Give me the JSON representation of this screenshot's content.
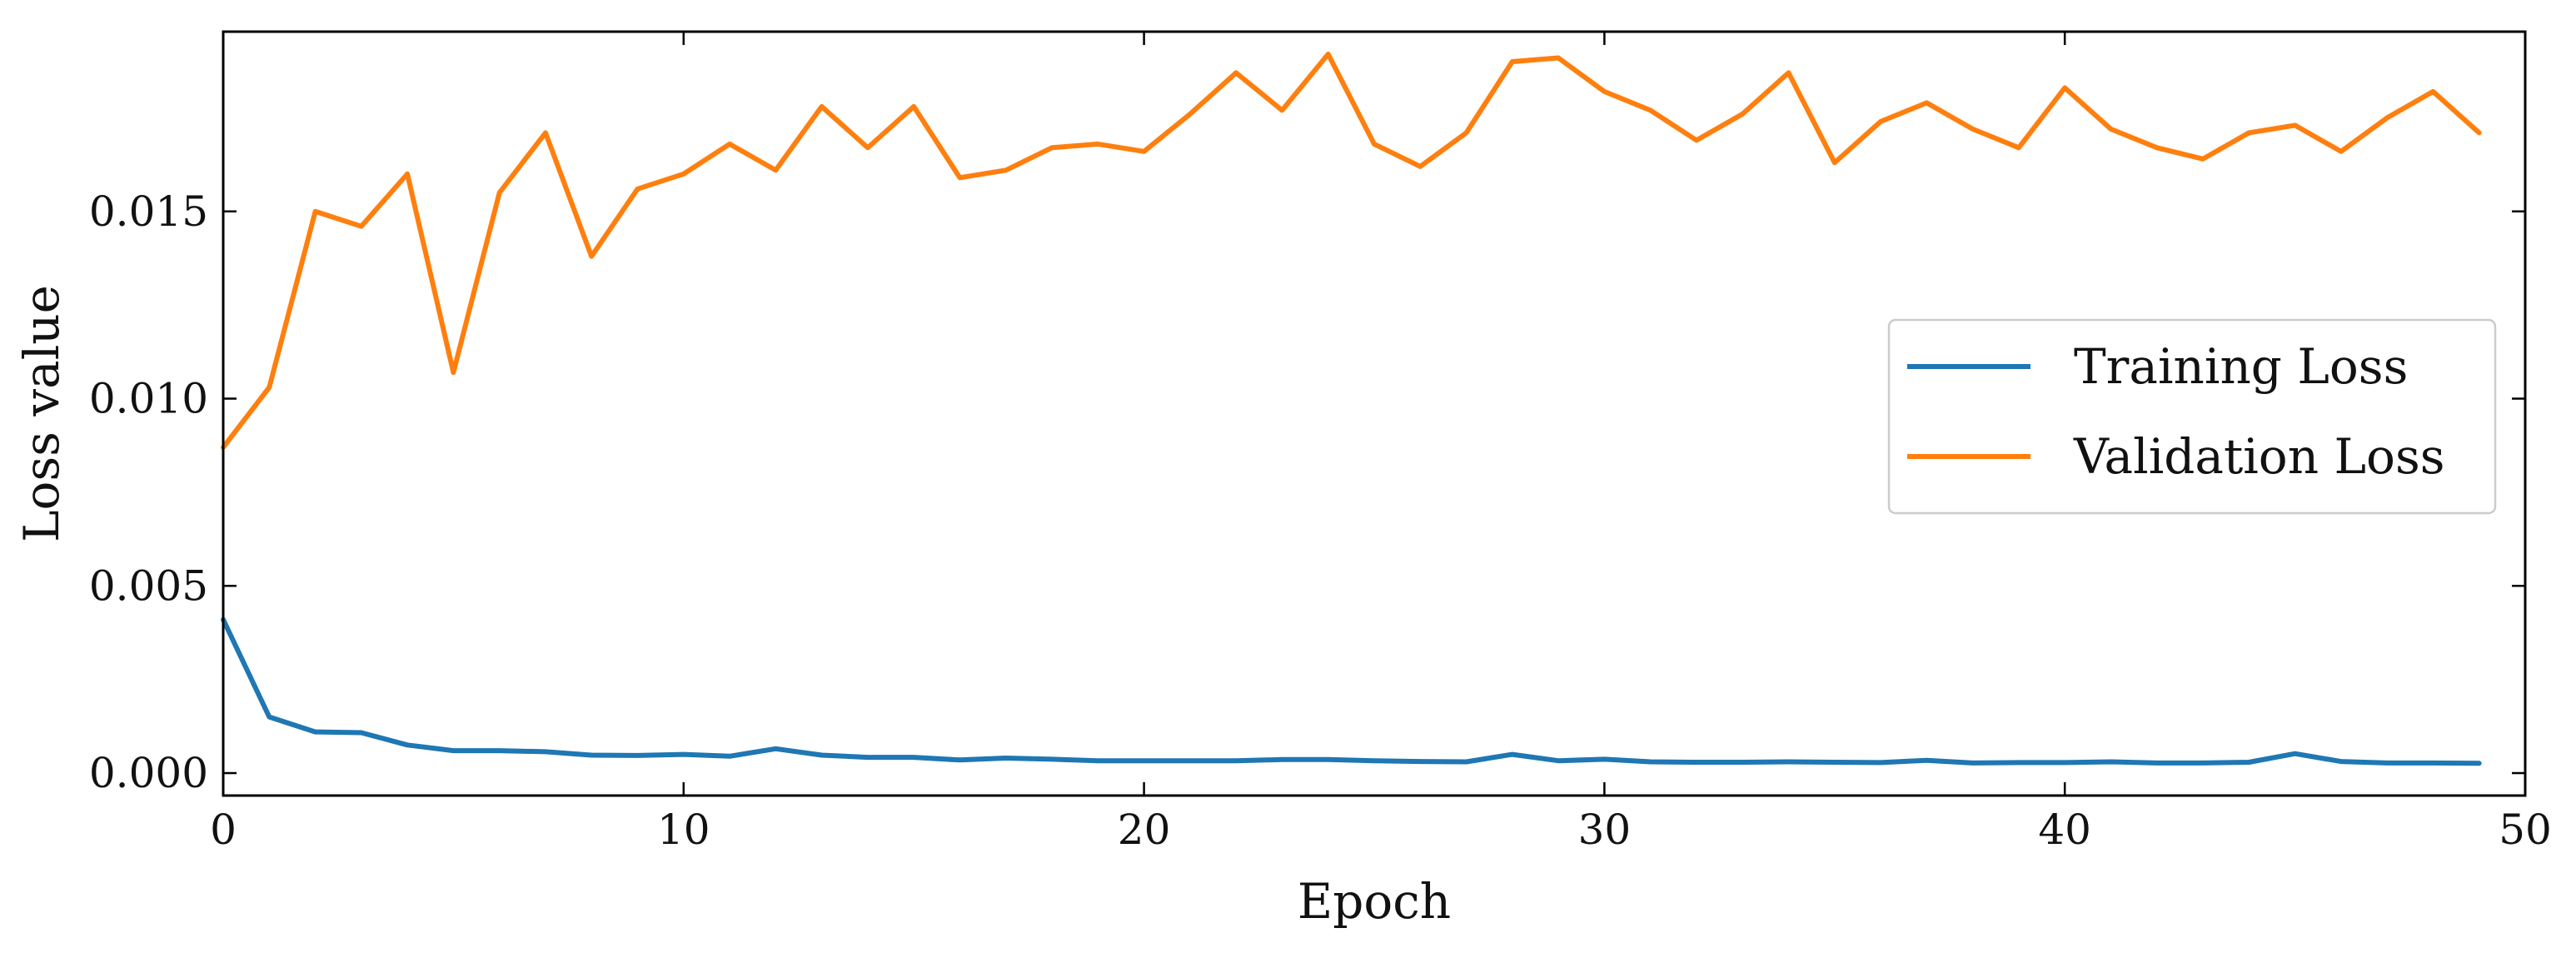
{
  "chart_data": {
    "type": "line",
    "title": "",
    "xlabel": "Epoch",
    "ylabel": "Loss value",
    "xlim": [
      0,
      50
    ],
    "ylim": [
      -0.0006,
      0.0198
    ],
    "xticks": [
      0,
      10,
      20,
      30,
      40,
      50
    ],
    "xtick_labels": [
      "0",
      "10",
      "20",
      "30",
      "40",
      "50"
    ],
    "yticks": [
      0.0,
      0.005,
      0.01,
      0.015
    ],
    "ytick_labels": [
      "0.000",
      "0.005",
      "0.010",
      "0.015"
    ],
    "grid": false,
    "legend_position": "center-right",
    "x": [
      0,
      1,
      2,
      3,
      4,
      5,
      6,
      7,
      8,
      9,
      10,
      11,
      12,
      13,
      14,
      15,
      16,
      17,
      18,
      19,
      20,
      21,
      22,
      23,
      24,
      25,
      26,
      27,
      28,
      29,
      30,
      31,
      32,
      33,
      34,
      35,
      36,
      37,
      38,
      39,
      40,
      41,
      42,
      43,
      44,
      45,
      46,
      47,
      48,
      49
    ],
    "series": [
      {
        "name": "Training Loss",
        "color": "#1f77b4",
        "values": [
          0.0041,
          0.0015,
          0.0011,
          0.00108,
          0.00075,
          0.0006,
          0.0006,
          0.00057,
          0.00048,
          0.00047,
          0.0005,
          0.00045,
          0.00065,
          0.00048,
          0.00042,
          0.00042,
          0.00035,
          0.0004,
          0.00037,
          0.00033,
          0.00033,
          0.00033,
          0.00033,
          0.00036,
          0.00036,
          0.00033,
          0.00031,
          0.0003,
          0.0005,
          0.00033,
          0.00037,
          0.0003,
          0.00029,
          0.00029,
          0.0003,
          0.00029,
          0.00028,
          0.00034,
          0.00027,
          0.00028,
          0.00028,
          0.0003,
          0.00027,
          0.00027,
          0.00029,
          0.00052,
          0.00031,
          0.00027,
          0.00027,
          0.00026
        ]
      },
      {
        "name": "Validation Loss",
        "color": "#ff7f0e",
        "values": [
          0.0087,
          0.0103,
          0.015,
          0.0146,
          0.016,
          0.0107,
          0.0155,
          0.0171,
          0.0138,
          0.0156,
          0.016,
          0.0168,
          0.0161,
          0.0178,
          0.0167,
          0.0178,
          0.0159,
          0.0161,
          0.0167,
          0.0168,
          0.0166,
          0.0176,
          0.0187,
          0.0177,
          0.0192,
          0.0168,
          0.0162,
          0.0171,
          0.019,
          0.0191,
          0.0182,
          0.0177,
          0.0169,
          0.0176,
          0.0187,
          0.0163,
          0.0174,
          0.0179,
          0.0172,
          0.0167,
          0.0183,
          0.0172,
          0.0167,
          0.0164,
          0.0171,
          0.0173,
          0.0166,
          0.0175,
          0.0182,
          0.0171
        ]
      }
    ]
  }
}
